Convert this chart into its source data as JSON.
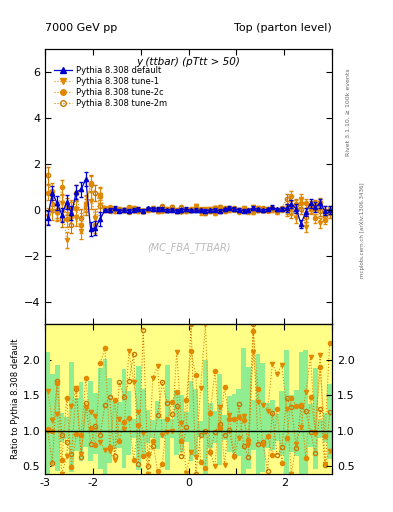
{
  "title_left": "7000 GeV pp",
  "title_right": "Top (parton level)",
  "plot_title": "y (ttbar) (pTtt > 50)",
  "watermark": "(MC_FBA_TTBAR)",
  "right_label": "Rivet 3.1.10, ≥ 100k events",
  "arxiv_label": "mcplots.cern.ch [arXiv:1306.3436]",
  "ylabel_ratio": "Ratio to Pythia 8.308 default",
  "xlim": [
    -3.0,
    3.0
  ],
  "ylim_main": [
    -5.0,
    7.0
  ],
  "ylim_ratio": [
    0.4,
    2.5
  ],
  "yticks_main": [
    -4,
    -2,
    0,
    2,
    4,
    6
  ],
  "yticks_ratio": [
    0.5,
    1.0,
    1.5,
    2.0
  ],
  "color_default": "#0000cc",
  "color_tune1": "#e08800",
  "color_tune2c": "#e08800",
  "color_tune2m": "#cc7700",
  "bg_green": "#90ee90",
  "bg_yellow": "#ffff88"
}
